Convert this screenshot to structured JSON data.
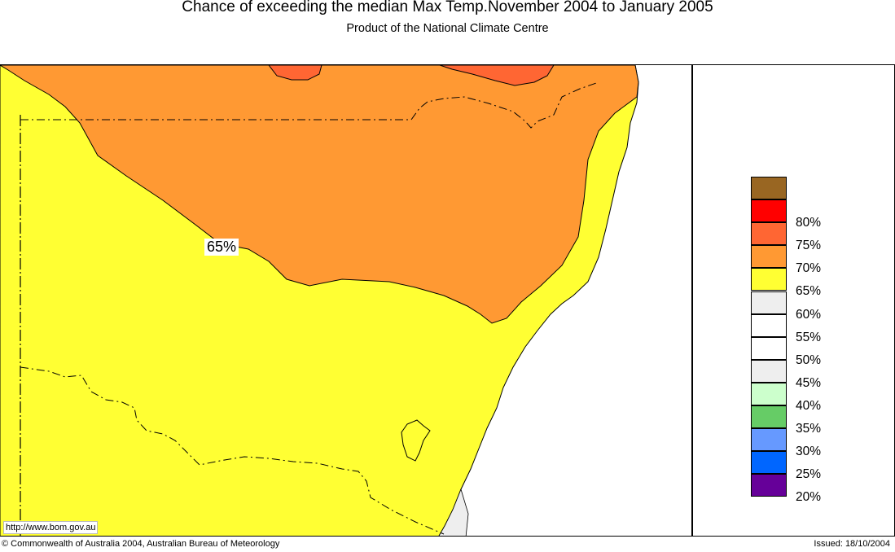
{
  "title": "Chance of exceeding the median Max Temp.November 2004 to January 2005",
  "subtitle": "Product of the National Climate Centre",
  "map": {
    "contour_label": "65%",
    "url": "http://www.bom.gov.au"
  },
  "legend": {
    "swatches": [
      {
        "color": "#996622"
      },
      {
        "color": "#ff0000",
        "label": "80%"
      },
      {
        "color": "#ff6633",
        "label": "75%"
      },
      {
        "color": "#ff9933",
        "label": "70%"
      },
      {
        "color": "#ffff33",
        "label": "65%"
      },
      {
        "color": "#eeeeee",
        "label": "60%"
      },
      {
        "color": "#ffffff",
        "label": "55%"
      },
      {
        "color": "#ffffff",
        "label": "50%"
      },
      {
        "color": "#eeeeee",
        "label": "45%"
      },
      {
        "color": "#ccffcc",
        "label": "40%"
      },
      {
        "color": "#66cc66",
        "label": "35%"
      },
      {
        "color": "#6699ff",
        "label": "30%"
      },
      {
        "color": "#0066ff",
        "label": "25%"
      },
      {
        "color": "#660099",
        "label": "20%"
      }
    ]
  },
  "footer": {
    "copyright": "© Commonwealth of Australia 2004, Australian Bureau of Meteorology",
    "issued": "Issued: 18/10/2004"
  }
}
